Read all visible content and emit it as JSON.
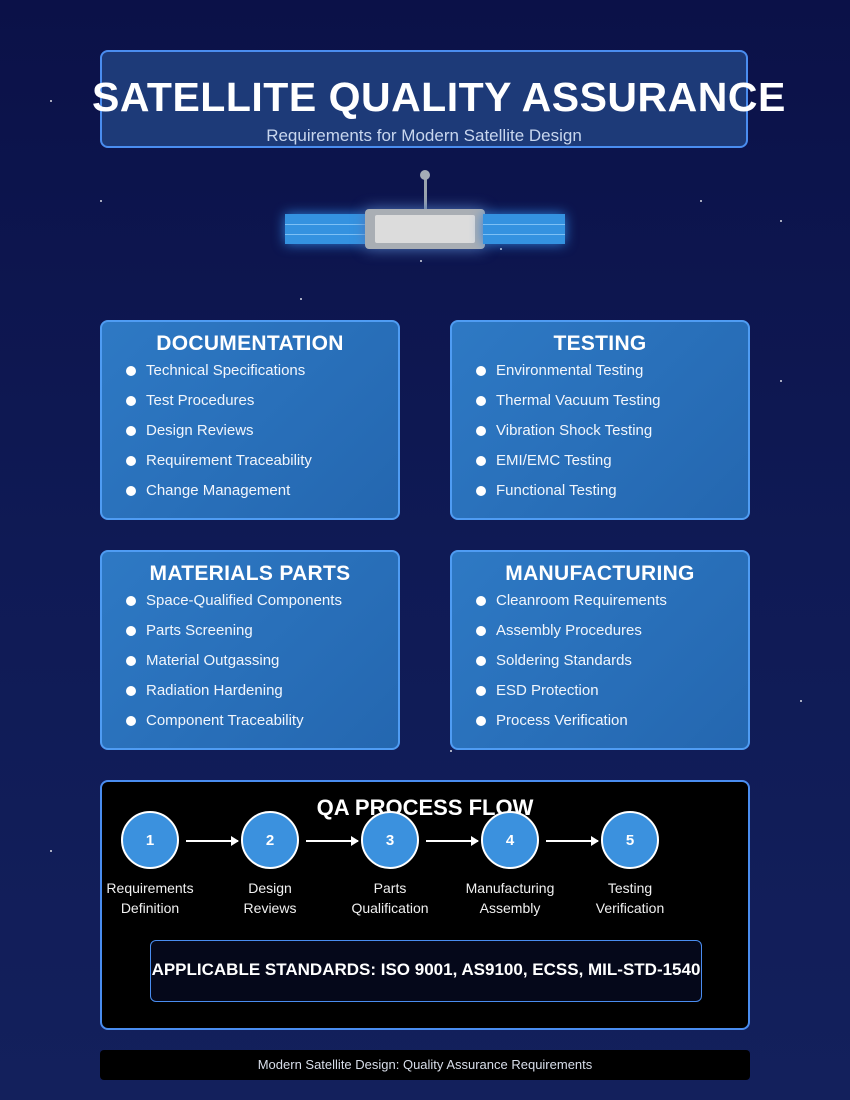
{
  "header": {
    "title": "SATELLITE QUALITY ASSURANCE",
    "subtitle": "Requirements for Modern Satellite Design"
  },
  "illustration": {
    "icon": "satellite-icon",
    "panel_color": "#3492e0",
    "body_color": "#a9aeb4"
  },
  "categories": [
    {
      "title": "DOCUMENTATION",
      "items": [
        "Technical Specifications",
        "Test Procedures",
        "Design Reviews",
        "Requirement Traceability",
        "Change Management"
      ]
    },
    {
      "title": "TESTING",
      "items": [
        "Environmental Testing",
        "Thermal Vacuum Testing",
        "Vibration Shock Testing",
        "EMI/EMC Testing",
        "Functional Testing"
      ]
    },
    {
      "title": "MATERIALS PARTS",
      "items": [
        "Space-Qualified Components",
        "Parts Screening",
        "Material Outgassing",
        "Radiation Hardening",
        "Component Traceability"
      ]
    },
    {
      "title": "MANUFACTURING",
      "items": [
        "Cleanroom Requirements",
        "Assembly Procedures",
        "Soldering Standards",
        "ESD Protection",
        "Process Verification"
      ]
    }
  ],
  "process": {
    "title": "QA PROCESS FLOW",
    "steps": [
      {
        "number": "1",
        "line1": "Requirements",
        "line2": "Definition"
      },
      {
        "number": "2",
        "line1": "Design",
        "line2": "Reviews"
      },
      {
        "number": "3",
        "line1": "Parts",
        "line2": "Qualification"
      },
      {
        "number": "4",
        "line1": "Manufacturing",
        "line2": "Assembly"
      },
      {
        "number": "5",
        "line1": "Testing",
        "line2": "Verification"
      }
    ],
    "standards": "APPLICABLE STANDARDS: ISO 9001, AS9100, ECSS, MIL-STD-1540"
  },
  "footer": {
    "text": "Modern Satellite Design: Quality Assurance Requirements"
  },
  "colors": {
    "background": "#0b1148",
    "card_fill": "#2e79c4",
    "card_border": "#4f9cf3",
    "step_circle": "#3b91de"
  }
}
